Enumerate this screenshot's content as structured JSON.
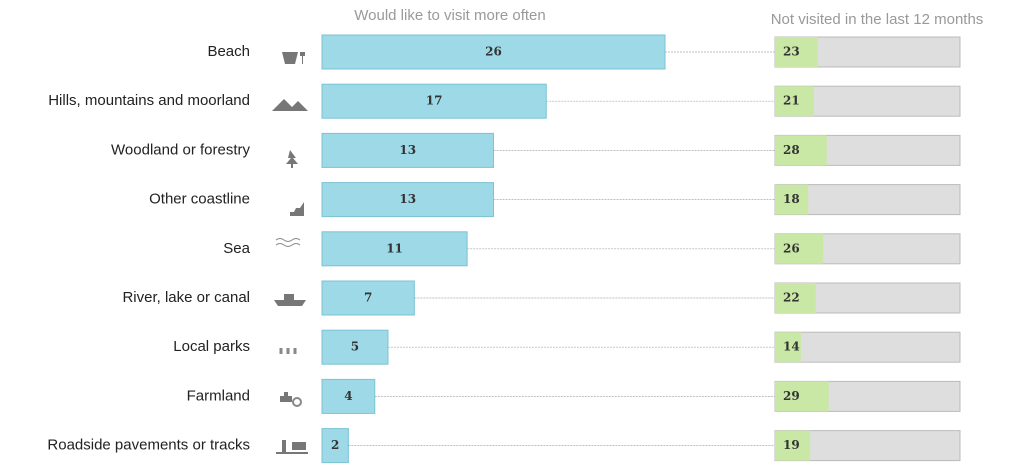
{
  "chart_data": {
    "type": "bar",
    "orientation": "horizontal",
    "categories": [
      "Beach",
      "Hills, mountains and moorland",
      "Woodland or forestry",
      "Other coastline",
      "Sea",
      "River, lake or canal",
      "Local parks",
      "Farmland",
      "Roadside pavements or tracks"
    ],
    "series": [
      {
        "name": "Would like to visit more often",
        "color": "#9dd9e6",
        "values": [
          26,
          17,
          13,
          13,
          11,
          7,
          5,
          4,
          2
        ],
        "xlim": [
          0,
          26
        ]
      },
      {
        "name": "Not visited in the last 12 months",
        "color": "#c9e8a6",
        "track_color": "#dedede",
        "values": [
          23,
          21,
          28,
          18,
          26,
          22,
          14,
          29,
          19
        ],
        "xlim": [
          0,
          100
        ]
      }
    ]
  }
}
